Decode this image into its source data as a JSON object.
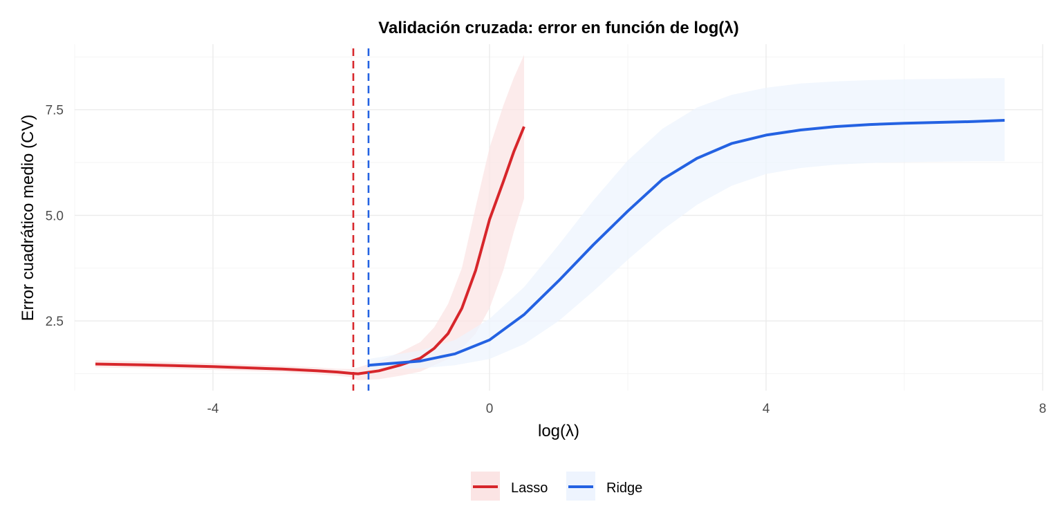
{
  "chart_data": {
    "type": "line",
    "title": "Validación cruzada: error en función de log(λ)",
    "xlabel": "log(λ)",
    "ylabel": "Error cuadrático medio (CV)",
    "xlim": [
      -6.0,
      8.0
    ],
    "ylim": [
      0.85,
      9.05
    ],
    "x_ticks": [
      -4,
      0,
      4,
      8
    ],
    "x_tick_labels": [
      "-4",
      "0",
      "4",
      "8"
    ],
    "y_ticks": [
      2.5,
      5.0,
      7.5
    ],
    "y_tick_labels": [
      "2.5",
      "5.0",
      "7.5"
    ],
    "grid": true,
    "legend_position": "bottom",
    "series": [
      {
        "name": "Lasso",
        "color": "#d7262b",
        "band_color": "#fbe4e4",
        "x": [
          -5.7,
          -5.0,
          -4.0,
          -3.0,
          -2.5,
          -2.2,
          -2.0,
          -1.9,
          -1.6,
          -1.3,
          -1.0,
          -0.8,
          -0.6,
          -0.4,
          -0.2,
          0.0,
          0.2,
          0.35,
          0.5
        ],
        "y": [
          1.48,
          1.46,
          1.42,
          1.36,
          1.32,
          1.29,
          1.26,
          1.25,
          1.32,
          1.45,
          1.62,
          1.85,
          2.2,
          2.8,
          3.7,
          4.9,
          5.8,
          6.5,
          7.1
        ],
        "lower": [
          1.4,
          1.38,
          1.34,
          1.29,
          1.24,
          1.2,
          1.17,
          1.1,
          1.12,
          1.2,
          1.3,
          1.45,
          1.6,
          1.85,
          2.2,
          2.8,
          3.7,
          4.6,
          5.4
        ],
        "upper": [
          1.57,
          1.55,
          1.5,
          1.44,
          1.4,
          1.37,
          1.36,
          1.4,
          1.55,
          1.75,
          2.0,
          2.35,
          2.9,
          3.75,
          5.2,
          6.6,
          7.6,
          8.25,
          8.8
        ],
        "cv_min_log_lambda": -1.97
      },
      {
        "name": "Ridge",
        "color": "#2462e2",
        "band_color": "#eef4fe",
        "x": [
          -1.75,
          -1.0,
          -0.5,
          0.0,
          0.5,
          1.0,
          1.5,
          2.0,
          2.5,
          3.0,
          3.5,
          4.0,
          4.5,
          5.0,
          5.5,
          6.0,
          6.5,
          7.0,
          7.45
        ],
        "y": [
          1.45,
          1.55,
          1.72,
          2.05,
          2.65,
          3.45,
          4.3,
          5.1,
          5.85,
          6.35,
          6.7,
          6.9,
          7.02,
          7.1,
          7.15,
          7.18,
          7.2,
          7.22,
          7.25
        ],
        "lower": [
          1.35,
          1.38,
          1.45,
          1.6,
          1.95,
          2.5,
          3.2,
          3.95,
          4.65,
          5.25,
          5.7,
          5.98,
          6.12,
          6.2,
          6.24,
          6.26,
          6.27,
          6.28,
          6.28
        ],
        "upper": [
          1.6,
          1.8,
          2.05,
          2.55,
          3.3,
          4.3,
          5.35,
          6.3,
          7.05,
          7.55,
          7.85,
          8.02,
          8.12,
          8.17,
          8.2,
          8.22,
          8.23,
          8.24,
          8.25
        ],
        "cv_min_log_lambda": -1.75
      }
    ]
  }
}
